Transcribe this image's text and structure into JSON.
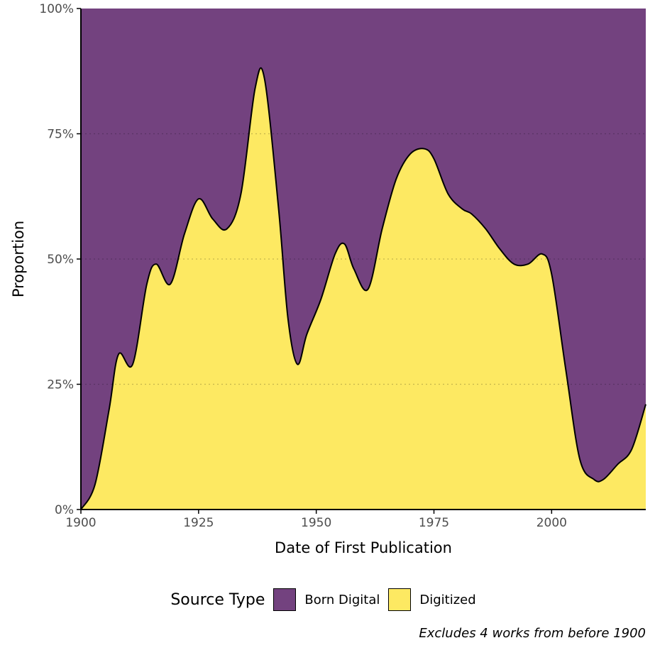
{
  "chart_data": {
    "type": "area",
    "stacked": true,
    "normalized": true,
    "xlabel": "Date of First Publication",
    "ylabel": "Proportion",
    "xlim": [
      1900,
      2020
    ],
    "ylim": [
      0,
      1
    ],
    "x_ticks": [
      1900,
      1925,
      1950,
      1975,
      2000
    ],
    "y_ticks": [
      0,
      0.25,
      0.5,
      0.75,
      1.0
    ],
    "y_tick_labels": [
      "0%",
      "25%",
      "50%",
      "75%",
      "100%"
    ],
    "grid": "horizontal dotted",
    "legend": {
      "title": "Source Type",
      "placement": "bottom",
      "entries": [
        "Born Digital",
        "Digitized"
      ]
    },
    "caption": "Excludes 4 works from before 1900",
    "series": [
      {
        "name": "Digitized",
        "color": "#FDE962",
        "x": [
          1900,
          1903,
          1906,
          1908,
          1911,
          1914,
          1916,
          1919,
          1922,
          1925,
          1928,
          1931,
          1934,
          1937,
          1939,
          1942,
          1944,
          1946,
          1948,
          1951,
          1954,
          1956,
          1958,
          1961,
          1964,
          1967,
          1970,
          1973,
          1975,
          1978,
          1981,
          1983,
          1986,
          1989,
          1992,
          1995,
          1998,
          2000,
          2003,
          2006,
          2009,
          2011,
          2014,
          2017,
          2020
        ],
        "values": [
          0.0,
          0.05,
          0.2,
          0.31,
          0.29,
          0.45,
          0.49,
          0.45,
          0.55,
          0.62,
          0.58,
          0.56,
          0.63,
          0.84,
          0.86,
          0.6,
          0.38,
          0.29,
          0.35,
          0.42,
          0.51,
          0.53,
          0.48,
          0.44,
          0.56,
          0.66,
          0.71,
          0.72,
          0.7,
          0.63,
          0.6,
          0.59,
          0.56,
          0.52,
          0.49,
          0.49,
          0.51,
          0.47,
          0.28,
          0.1,
          0.06,
          0.06,
          0.09,
          0.12,
          0.21
        ]
      },
      {
        "name": "Born Digital",
        "color": "#73427F",
        "fill_to": 1.0
      }
    ]
  }
}
